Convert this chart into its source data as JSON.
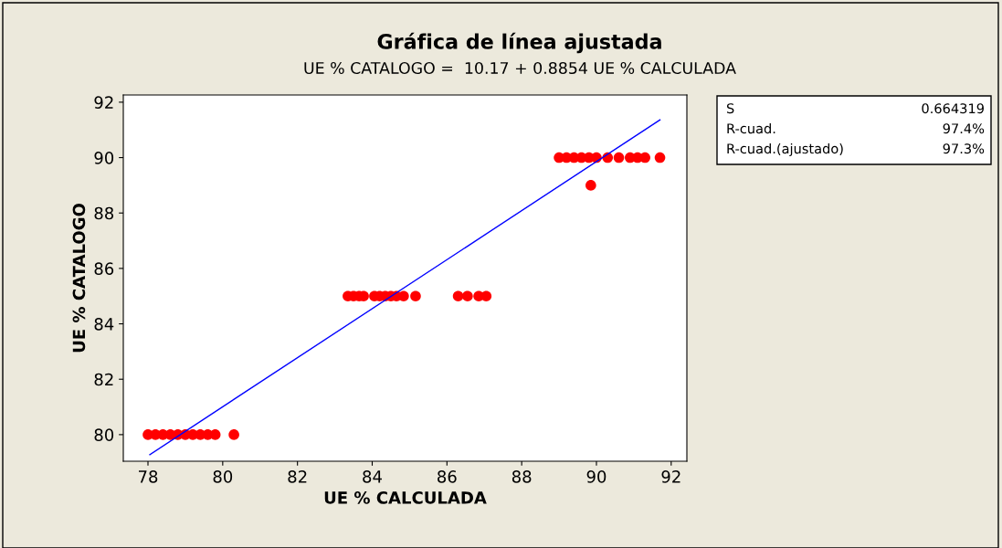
{
  "chart_data": {
    "type": "scatter",
    "title": "Gráfica de línea ajustada",
    "subtitle": "UE % CATALOGO =  10.17 + 0.8854 UE % CALCULADA",
    "xlabel": "UE % CALCULADA",
    "ylabel": "UE % CATALOGO",
    "annotations": [
      "S",
      "0.664319",
      "R-cuad.",
      "97.4%",
      "R-cuad.(ajustado)",
      "97.3%"
    ],
    "xlim": [
      77.34,
      92.42
    ],
    "ylim": [
      79.04,
      92.26
    ],
    "xticks": [
      78,
      80,
      82,
      84,
      86,
      88,
      90,
      92
    ],
    "yticks": [
      80,
      82,
      84,
      86,
      88,
      90,
      92
    ],
    "grid": false,
    "legend": false,
    "series": [
      {
        "marker": "circle",
        "color": "#ff0000",
        "x": [
          78.0,
          78.2,
          78.4,
          78.6,
          78.8,
          79.0,
          79.2,
          79.4,
          79.6,
          79.8,
          80.3,
          83.35,
          83.5,
          83.65,
          83.77,
          84.06,
          84.2,
          84.35,
          84.5,
          84.65,
          84.84,
          85.16,
          86.3,
          86.55,
          86.85,
          87.05,
          89.0,
          89.2,
          89.4,
          89.6,
          89.8,
          90.0,
          90.3,
          90.6,
          90.9,
          91.1,
          91.3,
          91.7,
          89.85
        ],
        "values": [
          80,
          80,
          80,
          80,
          80,
          80,
          80,
          80,
          80,
          80,
          80,
          85,
          85,
          85,
          85,
          85,
          85,
          85,
          85,
          85,
          85,
          85,
          85,
          85,
          85,
          85,
          90,
          90,
          90,
          90,
          90,
          90,
          90,
          90,
          90,
          90,
          90,
          90,
          89
        ]
      },
      {
        "type": "line",
        "color": "#0000ff",
        "line_style": "solid",
        "x": [
          78.05,
          91.7
        ],
        "values": [
          79.28,
          91.36
        ]
      }
    ]
  }
}
